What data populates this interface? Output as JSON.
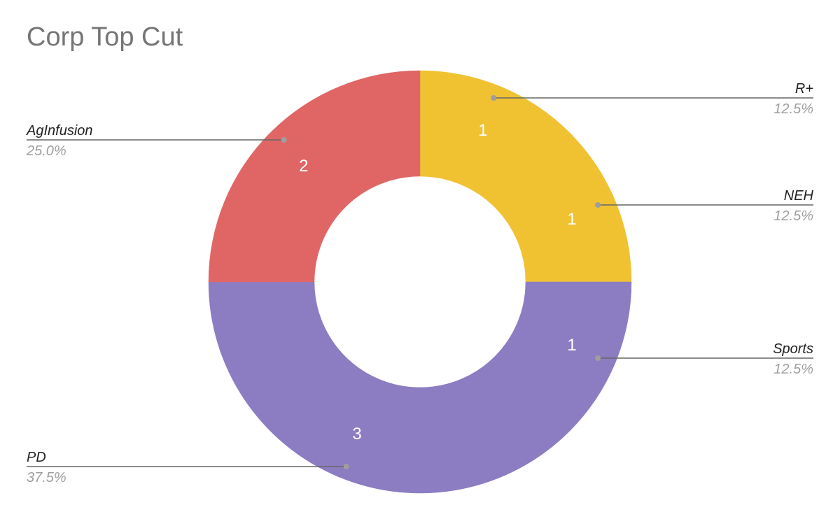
{
  "chart_data": {
    "type": "pie",
    "title": "Corp Top Cut",
    "donut": true,
    "slices": [
      {
        "label": "R+",
        "value": 1,
        "percent": "12.5%",
        "color": "#f0c232"
      },
      {
        "label": "NEH",
        "value": 1,
        "percent": "12.5%",
        "color": "#f0c232"
      },
      {
        "label": "Sports",
        "value": 1,
        "percent": "12.5%",
        "color": "#8c7cc2"
      },
      {
        "label": "PD",
        "value": 3,
        "percent": "37.5%",
        "color": "#8c7cc2"
      },
      {
        "label": "AgInfusion",
        "value": 2,
        "percent": "25.0%",
        "color": "#e06666"
      }
    ],
    "value_labels": [
      "1",
      "1",
      "1",
      "3",
      "2"
    ],
    "colors": {
      "leader_line": "#666666",
      "leader_dot": "#9e9e9e"
    }
  }
}
